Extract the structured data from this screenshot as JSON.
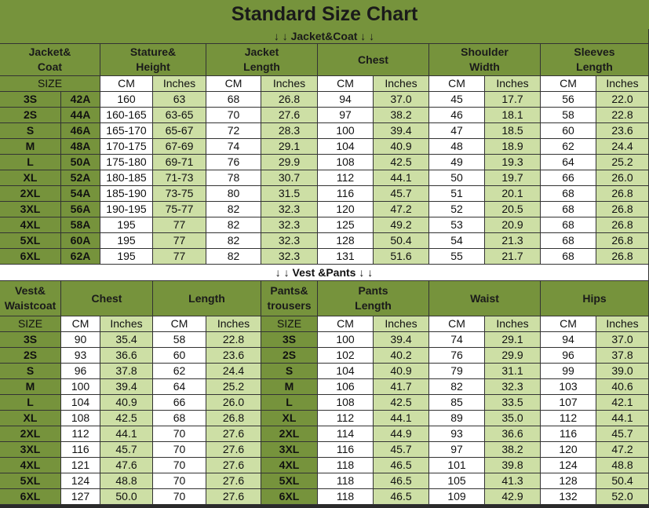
{
  "title": "Standard Size Chart",
  "jacket": {
    "section": "↓ ↓ Jacket&Coat ↓ ↓",
    "headers": [
      "Jacket&\nCoat",
      "Stature&\nHeight",
      "Jacket\nLength",
      "Chest",
      "Shoulder\nWidth",
      "Sleeves\nLength"
    ],
    "units": [
      "SIZE",
      "CM",
      "Inches",
      "CM",
      "Inches",
      "CM",
      "Inches",
      "CM",
      "Inches",
      "CM",
      "Inches"
    ],
    "rows": [
      [
        "3S",
        "42A",
        "160",
        "63",
        "68",
        "26.8",
        "94",
        "37.0",
        "45",
        "17.7",
        "56",
        "22.0"
      ],
      [
        "2S",
        "44A",
        "160-165",
        "63-65",
        "70",
        "27.6",
        "97",
        "38.2",
        "46",
        "18.1",
        "58",
        "22.8"
      ],
      [
        "S",
        "46A",
        "165-170",
        "65-67",
        "72",
        "28.3",
        "100",
        "39.4",
        "47",
        "18.5",
        "60",
        "23.6"
      ],
      [
        "M",
        "48A",
        "170-175",
        "67-69",
        "74",
        "29.1",
        "104",
        "40.9",
        "48",
        "18.9",
        "62",
        "24.4"
      ],
      [
        "L",
        "50A",
        "175-180",
        "69-71",
        "76",
        "29.9",
        "108",
        "42.5",
        "49",
        "19.3",
        "64",
        "25.2"
      ],
      [
        "XL",
        "52A",
        "180-185",
        "71-73",
        "78",
        "30.7",
        "112",
        "44.1",
        "50",
        "19.7",
        "66",
        "26.0"
      ],
      [
        "2XL",
        "54A",
        "185-190",
        "73-75",
        "80",
        "31.5",
        "116",
        "45.7",
        "51",
        "20.1",
        "68",
        "26.8"
      ],
      [
        "3XL",
        "56A",
        "190-195",
        "75-77",
        "82",
        "32.3",
        "120",
        "47.2",
        "52",
        "20.5",
        "68",
        "26.8"
      ],
      [
        "4XL",
        "58A",
        "195",
        "77",
        "82",
        "32.3",
        "125",
        "49.2",
        "53",
        "20.9",
        "68",
        "26.8"
      ],
      [
        "5XL",
        "60A",
        "195",
        "77",
        "82",
        "32.3",
        "128",
        "50.4",
        "54",
        "21.3",
        "68",
        "26.8"
      ],
      [
        "6XL",
        "62A",
        "195",
        "77",
        "82",
        "32.3",
        "131",
        "51.6",
        "55",
        "21.7",
        "68",
        "26.8"
      ]
    ]
  },
  "vest_pants": {
    "section": "↓ ↓ Vest &Pants ↓ ↓",
    "headers": [
      "Vest&\nWaistcoat",
      "Chest",
      "Length",
      "Pants&\ntrousers",
      "Pants\nLength",
      "Waist",
      "Hips"
    ],
    "units": [
      "SIZE",
      "CM",
      "Inches",
      "CM",
      "Inches",
      "SIZE",
      "CM",
      "Inches",
      "CM",
      "Inches",
      "CM",
      "Inches"
    ],
    "rows": [
      [
        "3S",
        "90",
        "35.4",
        "58",
        "22.8",
        "3S",
        "100",
        "39.4",
        "74",
        "29.1",
        "94",
        "37.0"
      ],
      [
        "2S",
        "93",
        "36.6",
        "60",
        "23.6",
        "2S",
        "102",
        "40.2",
        "76",
        "29.9",
        "96",
        "37.8"
      ],
      [
        "S",
        "96",
        "37.8",
        "62",
        "24.4",
        "S",
        "104",
        "40.9",
        "79",
        "31.1",
        "99",
        "39.0"
      ],
      [
        "M",
        "100",
        "39.4",
        "64",
        "25.2",
        "M",
        "106",
        "41.7",
        "82",
        "32.3",
        "103",
        "40.6"
      ],
      [
        "L",
        "104",
        "40.9",
        "66",
        "26.0",
        "L",
        "108",
        "42.5",
        "85",
        "33.5",
        "107",
        "42.1"
      ],
      [
        "XL",
        "108",
        "42.5",
        "68",
        "26.8",
        "XL",
        "112",
        "44.1",
        "89",
        "35.0",
        "112",
        "44.1"
      ],
      [
        "2XL",
        "112",
        "44.1",
        "70",
        "27.6",
        "2XL",
        "114",
        "44.9",
        "93",
        "36.6",
        "116",
        "45.7"
      ],
      [
        "3XL",
        "116",
        "45.7",
        "70",
        "27.6",
        "3XL",
        "116",
        "45.7",
        "97",
        "38.2",
        "120",
        "47.2"
      ],
      [
        "4XL",
        "121",
        "47.6",
        "70",
        "27.6",
        "4XL",
        "118",
        "46.5",
        "101",
        "39.8",
        "124",
        "48.8"
      ],
      [
        "5XL",
        "124",
        "48.8",
        "70",
        "27.6",
        "5XL",
        "118",
        "46.5",
        "105",
        "41.3",
        "128",
        "50.4"
      ],
      [
        "6XL",
        "127",
        "50.0",
        "70",
        "27.6",
        "6XL",
        "118",
        "46.5",
        "109",
        "42.9",
        "132",
        "52.0"
      ]
    ]
  }
}
